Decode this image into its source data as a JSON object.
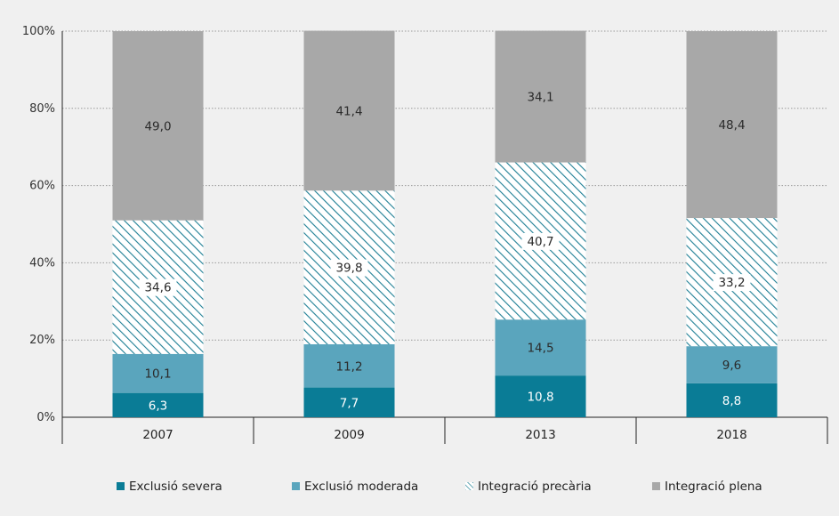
{
  "chart_data": {
    "type": "bar",
    "stacked": true,
    "categories": [
      "2007",
      "2009",
      "2013",
      "2018"
    ],
    "series": [
      {
        "name": "Exclusió severa",
        "values": [
          6.3,
          7.7,
          10.8,
          8.8
        ],
        "labels": [
          "6,3",
          "7,7",
          "10,8",
          "8,8"
        ],
        "color": "#0a7c96",
        "pattern": "solid"
      },
      {
        "name": "Exclusió moderada",
        "values": [
          10.1,
          11.2,
          14.5,
          9.6
        ],
        "labels": [
          "10,1",
          "11,2",
          "14,5",
          "9,6"
        ],
        "color": "#5aa5bd",
        "pattern": "solid"
      },
      {
        "name": "Integració precària",
        "values": [
          34.6,
          39.8,
          40.7,
          33.2
        ],
        "labels": [
          "34,6",
          "39,8",
          "40,7",
          "33,2"
        ],
        "color": "#1f7f95",
        "pattern": "hatch"
      },
      {
        "name": "Integració plena",
        "values": [
          49.0,
          41.4,
          34.1,
          48.4
        ],
        "labels": [
          "49,0",
          "41,4",
          "34,1",
          "48,4"
        ],
        "color": "#a8a8a8",
        "pattern": "solid"
      }
    ],
    "yticks": [
      "0%",
      "20%",
      "40%",
      "60%",
      "80%",
      "100%"
    ],
    "ylim": [
      0,
      100
    ],
    "grid": true,
    "legend_position": "bottom",
    "title": "",
    "xlabel": "",
    "ylabel": ""
  }
}
